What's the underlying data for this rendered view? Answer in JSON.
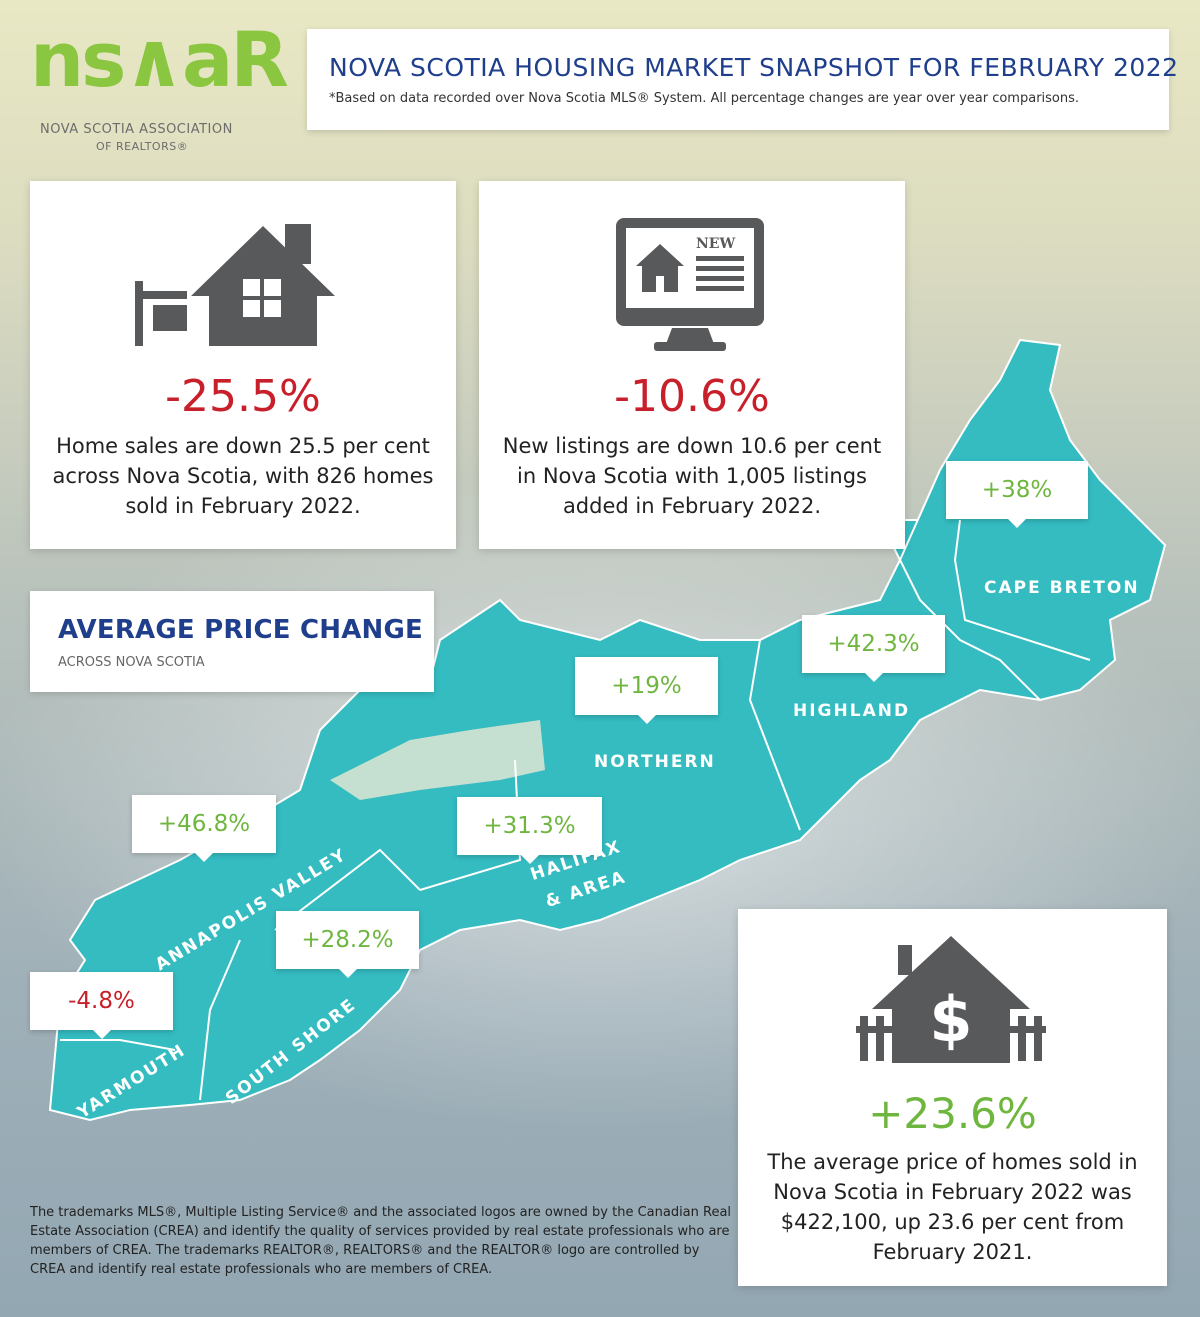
{
  "logo": {
    "mark": "ns∧aR",
    "line1": "NOVA SCOTIA ASSOCIATION",
    "line2": "OF REALTORS®"
  },
  "header": {
    "title": "NOVA SCOTIA HOUSING MARKET SNAPSHOT FOR FEBRUARY 2022",
    "subtitle": "*Based on data recorded over Nova Scotia MLS® System. All percentage changes are year over year comparisons."
  },
  "cards": {
    "sales": {
      "icon": "house-for-sale-icon",
      "value": "-25.5%",
      "text": "Home sales are down 25.5 per cent across Nova Scotia, with 826 homes sold in February 2022."
    },
    "listings": {
      "icon": "monitor-new-listing-icon",
      "badge": "NEW",
      "value": "-10.6%",
      "text": "New listings are down 10.6 per cent in Nova Scotia with 1,005 listings added in February 2022."
    },
    "price": {
      "icon": "house-dollar-icon",
      "symbol": "$",
      "value": "+23.6%",
      "text": "The average price of homes sold in Nova Scotia in February 2022 was $422,100, up 23.6 per cent from February 2021."
    }
  },
  "average_box": {
    "title": "AVERAGE PRICE CHANGE",
    "subtitle": "ACROSS NOVA SCOTIA"
  },
  "regions": {
    "cape_breton": {
      "name": "CAPE BRETON",
      "change": "+38%"
    },
    "highland": {
      "name": "HIGHLAND",
      "change": "+42.3%"
    },
    "northern": {
      "name": "NORTHERN",
      "change": "+19%"
    },
    "halifax_line1": {
      "name": "HALIFAX"
    },
    "halifax_line2": {
      "name": "& AREA"
    },
    "halifax": {
      "change": "+31.3%"
    },
    "annapolis": {
      "name": "ANNAPOLIS VALLEY",
      "change": "+46.8%"
    },
    "south_shore": {
      "name": "SOUTH SHORE",
      "change": "+28.2%"
    },
    "yarmouth": {
      "name": "YARMOUTH",
      "change": "-4.8%"
    }
  },
  "colors": {
    "map": "#35bdbf",
    "positive": "#6fb63f",
    "negative": "#c8202a",
    "title_blue": "#1f3e8c",
    "icon_gray": "#58595b"
  },
  "disclaimer": "The trademarks MLS®, Multiple Listing Service® and the associated logos are owned by the Canadian Real Estate Association (CREA) and identify the quality of services provided by real estate professionals who are members of CREA. The trademarks REALTOR®, REALTORS® and the REALTOR® logo are controlled by CREA and identify real estate professionals who are members of CREA."
}
